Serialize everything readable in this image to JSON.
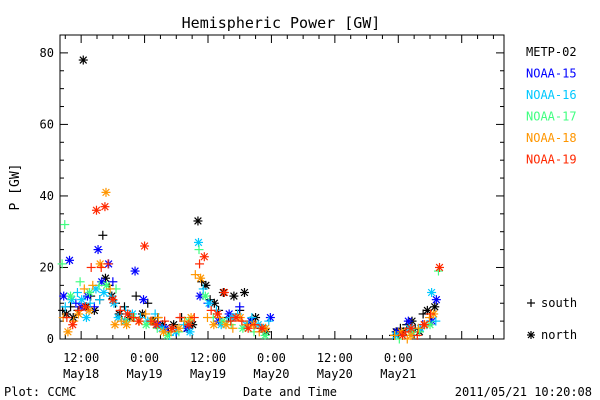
{
  "chart_data": {
    "type": "scatter",
    "title": "Hemispheric Power [GW]",
    "ylabel": "P [GW]",
    "xlabel": "Date and Time",
    "ylim": [
      0,
      85
    ],
    "yticks": [
      0,
      20,
      40,
      60,
      80
    ],
    "xlim": [
      0,
      84
    ],
    "x_unit": "hours since 2011-05-18 08:00",
    "xticks": [
      {
        "x": 4,
        "time": "12:00",
        "date": "May18"
      },
      {
        "x": 16,
        "time": "0:00",
        "date": "May19"
      },
      {
        "x": 28,
        "time": "12:00",
        "date": "May19"
      },
      {
        "x": 40,
        "time": "0:00",
        "date": "May20"
      },
      {
        "x": 52,
        "time": "12:00",
        "date": "May20"
      },
      {
        "x": 64,
        "time": "0:00",
        "date": "May21"
      }
    ],
    "footer_left": "Plot: CCMC",
    "footer_right": "2011/05/21 10:20:08",
    "legend_markers": [
      {
        "symbol": "+",
        "label": "south"
      },
      {
        "symbol": "*",
        "label": "north"
      }
    ],
    "series": [
      {
        "name": "METP-02",
        "color": "#000000",
        "points": [
          [
            0.5,
            8,
            "+"
          ],
          [
            1.2,
            7,
            "*"
          ],
          [
            2.0,
            9,
            "+"
          ],
          [
            2.5,
            6,
            "*"
          ],
          [
            3.4,
            8,
            "+"
          ],
          [
            4.4,
            78,
            "*"
          ],
          [
            5.0,
            9,
            "*"
          ],
          [
            5.8,
            12,
            "+"
          ],
          [
            6.5,
            8,
            "*"
          ],
          [
            7.5,
            11,
            "+"
          ],
          [
            8.1,
            29,
            "+"
          ],
          [
            8.6,
            17,
            "*"
          ],
          [
            9.3,
            15,
            "+"
          ],
          [
            9.8,
            12,
            "*"
          ],
          [
            10.5,
            10,
            "+"
          ],
          [
            11.2,
            7,
            "*"
          ],
          [
            12.2,
            9,
            "+"
          ],
          [
            13.2,
            6,
            "*"
          ],
          [
            14.4,
            12,
            "+"
          ],
          [
            15.6,
            7,
            "*"
          ],
          [
            16.6,
            10,
            "+"
          ],
          [
            17.6,
            5,
            "*"
          ],
          [
            18.5,
            6,
            "+"
          ],
          [
            19.4,
            4,
            "*"
          ],
          [
            20.5,
            2,
            "+"
          ],
          [
            21.5,
            4,
            "*"
          ],
          [
            23.0,
            6,
            "+"
          ],
          [
            24.1,
            3,
            "*"
          ],
          [
            25.1,
            4,
            "*"
          ],
          [
            26.1,
            33,
            "*"
          ],
          [
            26.8,
            16,
            "+"
          ],
          [
            27.6,
            15,
            "*"
          ],
          [
            28.4,
            11,
            "+"
          ],
          [
            29.2,
            10,
            "*"
          ],
          [
            30.0,
            8,
            "+"
          ],
          [
            30.9,
            13,
            "*"
          ],
          [
            31.9,
            6,
            "+"
          ],
          [
            32.9,
            12,
            "*"
          ],
          [
            34.0,
            8,
            "+"
          ],
          [
            34.9,
            13,
            "*"
          ],
          [
            36.0,
            5,
            "+"
          ],
          [
            37.0,
            6,
            "*"
          ],
          [
            38.0,
            3,
            "+"
          ],
          [
            39.0,
            2,
            "*"
          ],
          [
            63.1,
            1,
            "+"
          ],
          [
            63.6,
            2,
            "*"
          ],
          [
            64.4,
            3,
            "+"
          ],
          [
            65.0,
            2,
            "*"
          ],
          [
            65.6,
            4,
            "+"
          ],
          [
            66.6,
            5,
            "*"
          ],
          [
            67.2,
            3,
            "+"
          ],
          [
            68.0,
            2,
            "*"
          ],
          [
            68.7,
            7,
            "+"
          ],
          [
            69.5,
            8,
            "*"
          ],
          [
            70.2,
            5,
            "+"
          ],
          [
            70.9,
            9,
            "*"
          ]
        ]
      },
      {
        "name": "NOAA-15",
        "color": "#0000ff",
        "points": [
          [
            0.7,
            12,
            "*"
          ],
          [
            1.8,
            22,
            "*"
          ],
          [
            3.0,
            10,
            "+"
          ],
          [
            4.0,
            9,
            "*"
          ],
          [
            5.2,
            12,
            "*"
          ],
          [
            6.5,
            9,
            "+"
          ],
          [
            7.2,
            25,
            "*"
          ],
          [
            7.9,
            16,
            "*"
          ],
          [
            9.2,
            21,
            "*"
          ],
          [
            10.0,
            16,
            "+"
          ],
          [
            12.3,
            5,
            "*"
          ],
          [
            14.2,
            19,
            "*"
          ],
          [
            15.8,
            11,
            "*"
          ],
          [
            18.5,
            4,
            "*"
          ],
          [
            20.0,
            3,
            "*"
          ],
          [
            22.0,
            2,
            "+"
          ],
          [
            24.0,
            3,
            "*"
          ],
          [
            26.5,
            12,
            "*"
          ],
          [
            28.0,
            10,
            "+"
          ],
          [
            30.0,
            5,
            "*"
          ],
          [
            32.0,
            7,
            "*"
          ],
          [
            34.0,
            9,
            "+"
          ],
          [
            36.1,
            5,
            "*"
          ],
          [
            39.8,
            6,
            "*"
          ],
          [
            63.8,
            2,
            "*"
          ],
          [
            65.9,
            5,
            "*"
          ],
          [
            68.6,
            4,
            "+"
          ],
          [
            70.4,
            5,
            "*"
          ],
          [
            71.2,
            11,
            "*"
          ]
        ]
      },
      {
        "name": "NOAA-16",
        "color": "#00c8ff",
        "points": [
          [
            1.0,
            9,
            "+"
          ],
          [
            2.2,
            11,
            "*"
          ],
          [
            3.3,
            13,
            "+"
          ],
          [
            4.1,
            11,
            "*"
          ],
          [
            5.0,
            6,
            "*"
          ],
          [
            5.7,
            10,
            "+"
          ],
          [
            6.8,
            14,
            "*"
          ],
          [
            7.5,
            11,
            "+"
          ],
          [
            8.3,
            13,
            "*"
          ],
          [
            9.6,
            12,
            "+"
          ],
          [
            10.2,
            10,
            "*"
          ],
          [
            11.0,
            6,
            "*"
          ],
          [
            12.4,
            8,
            "+"
          ],
          [
            13.7,
            7,
            "*"
          ],
          [
            15.2,
            6,
            "+"
          ],
          [
            16.6,
            5,
            "*"
          ],
          [
            18.0,
            7,
            "+"
          ],
          [
            19.3,
            3,
            "*"
          ],
          [
            20.7,
            1,
            "+"
          ],
          [
            21.9,
            2,
            "*"
          ],
          [
            23.4,
            4,
            "+"
          ],
          [
            24.6,
            2,
            "*"
          ],
          [
            26.2,
            27,
            "*"
          ],
          [
            27.1,
            14,
            "+"
          ],
          [
            28.2,
            10,
            "*"
          ],
          [
            29.6,
            8,
            "+"
          ],
          [
            30.5,
            4,
            "*"
          ],
          [
            31.6,
            5,
            "+"
          ],
          [
            32.6,
            6,
            "*"
          ],
          [
            33.6,
            7,
            "+"
          ],
          [
            35.2,
            4,
            "*"
          ],
          [
            36.3,
            6,
            "+"
          ],
          [
            37.5,
            4,
            "*"
          ],
          [
            38.5,
            3,
            "*"
          ],
          [
            39.5,
            5,
            "+"
          ],
          [
            63.5,
            1,
            "*"
          ],
          [
            65.2,
            1,
            "+"
          ],
          [
            66.1,
            3,
            "*"
          ],
          [
            66.9,
            2,
            "+"
          ],
          [
            68.2,
            3,
            "*"
          ],
          [
            69.4,
            4,
            "+"
          ],
          [
            70.3,
            13,
            "*"
          ],
          [
            71.1,
            5,
            "+"
          ]
        ]
      },
      {
        "name": "NOAA-17",
        "color": "#40ff80",
        "points": [
          [
            0.4,
            21,
            "+"
          ],
          [
            0.9,
            32,
            "+"
          ],
          [
            2.0,
            12,
            "*"
          ],
          [
            3.8,
            16,
            "+"
          ],
          [
            5.6,
            13,
            "*"
          ],
          [
            7.4,
            15,
            "+"
          ],
          [
            8.8,
            15,
            "*"
          ],
          [
            10.6,
            14,
            "+"
          ],
          [
            12.4,
            5,
            "*"
          ],
          [
            14.1,
            6,
            "+"
          ],
          [
            16.3,
            4,
            "*"
          ],
          [
            18.4,
            3,
            "+"
          ],
          [
            20.3,
            1,
            "*"
          ],
          [
            22.5,
            2,
            "+"
          ],
          [
            24.3,
            5,
            "*"
          ],
          [
            26.3,
            25,
            "+"
          ],
          [
            27.5,
            12,
            "*"
          ],
          [
            29.0,
            6,
            "+"
          ],
          [
            30.8,
            5,
            "*"
          ],
          [
            32.4,
            4,
            "+"
          ],
          [
            34.6,
            3,
            "*"
          ],
          [
            36.7,
            2,
            "+"
          ],
          [
            38.8,
            1,
            "*"
          ],
          [
            64.2,
            0,
            "+"
          ],
          [
            66.6,
            2,
            "*"
          ],
          [
            68.0,
            2,
            "+"
          ],
          [
            70.0,
            4,
            "*"
          ],
          [
            71.6,
            19,
            "+"
          ]
        ]
      },
      {
        "name": "NOAA-18",
        "color": "#ff9600",
        "points": [
          [
            0.6,
            6,
            "+"
          ],
          [
            1.5,
            2,
            "*"
          ],
          [
            2.6,
            5,
            "+"
          ],
          [
            3.5,
            7,
            "*"
          ],
          [
            4.6,
            14,
            "+"
          ],
          [
            5.5,
            8,
            "*"
          ],
          [
            6.2,
            15,
            "+"
          ],
          [
            7.6,
            21,
            "*"
          ],
          [
            8.7,
            41,
            "*"
          ],
          [
            9.5,
            14,
            "+"
          ],
          [
            10.4,
            4,
            "*"
          ],
          [
            11.6,
            5,
            "+"
          ],
          [
            12.6,
            4,
            "*"
          ],
          [
            13.6,
            6,
            "+"
          ],
          [
            15.0,
            5,
            "*"
          ],
          [
            16.2,
            7,
            "+"
          ],
          [
            17.4,
            5,
            "*"
          ],
          [
            18.6,
            6,
            "+"
          ],
          [
            19.6,
            2,
            "*"
          ],
          [
            21.0,
            2,
            "+"
          ],
          [
            22.5,
            3,
            "*"
          ],
          [
            23.6,
            5,
            "+"
          ],
          [
            24.8,
            6,
            "*"
          ],
          [
            25.6,
            18,
            "+"
          ],
          [
            26.6,
            17,
            "*"
          ],
          [
            27.9,
            6,
            "+"
          ],
          [
            29.1,
            4,
            "*"
          ],
          [
            30.2,
            6,
            "+"
          ],
          [
            31.4,
            4,
            "*"
          ],
          [
            32.7,
            3,
            "+"
          ],
          [
            34.1,
            6,
            "*"
          ],
          [
            35.4,
            4,
            "+"
          ],
          [
            36.6,
            4,
            "*"
          ],
          [
            37.7,
            2,
            "+"
          ],
          [
            38.9,
            3,
            "*"
          ],
          [
            63.3,
            1,
            "+"
          ],
          [
            64.6,
            2,
            "*"
          ],
          [
            65.7,
            0,
            "+"
          ],
          [
            66.4,
            1,
            "*"
          ],
          [
            67.8,
            3,
            "+"
          ],
          [
            69.0,
            4,
            "*"
          ],
          [
            69.9,
            6,
            "+"
          ],
          [
            70.7,
            7,
            "*"
          ]
        ]
      },
      {
        "name": "NOAA-19",
        "color": "#ff2800",
        "points": [
          [
            1.3,
            6,
            "+"
          ],
          [
            2.4,
            4,
            "*"
          ],
          [
            3.6,
            8,
            "+"
          ],
          [
            4.8,
            9,
            "*"
          ],
          [
            5.9,
            20,
            "+"
          ],
          [
            6.9,
            36,
            "*"
          ],
          [
            7.8,
            20,
            "+"
          ],
          [
            8.5,
            37,
            "*"
          ],
          [
            9.1,
            21,
            "+"
          ],
          [
            10.0,
            11,
            "*"
          ],
          [
            11.4,
            8,
            "+"
          ],
          [
            12.8,
            7,
            "*"
          ],
          [
            13.9,
            6,
            "+"
          ],
          [
            14.9,
            5,
            "*"
          ],
          [
            16.0,
            26,
            "*"
          ],
          [
            17.2,
            5,
            "+"
          ],
          [
            18.2,
            4,
            "*"
          ],
          [
            19.8,
            5,
            "+"
          ],
          [
            21.2,
            3,
            "*"
          ],
          [
            22.7,
            6,
            "+"
          ],
          [
            24.4,
            4,
            "*"
          ],
          [
            25.4,
            6,
            "+"
          ],
          [
            26.4,
            21,
            "+"
          ],
          [
            27.3,
            23,
            "*"
          ],
          [
            28.6,
            8,
            "+"
          ],
          [
            29.8,
            7,
            "*"
          ],
          [
            31.1,
            13,
            "*"
          ],
          [
            32.3,
            5,
            "+"
          ],
          [
            33.3,
            6,
            "*"
          ],
          [
            34.4,
            5,
            "+"
          ],
          [
            35.6,
            3,
            "*"
          ],
          [
            36.9,
            4,
            "+"
          ],
          [
            38.2,
            3,
            "*"
          ],
          [
            64.8,
            1,
            "*"
          ],
          [
            65.4,
            2,
            "+"
          ],
          [
            66.4,
            3,
            "*"
          ],
          [
            67.6,
            1,
            "+"
          ],
          [
            68.9,
            4,
            "*"
          ],
          [
            70.1,
            7,
            "+"
          ],
          [
            71.8,
            20,
            "*"
          ]
        ]
      }
    ]
  }
}
